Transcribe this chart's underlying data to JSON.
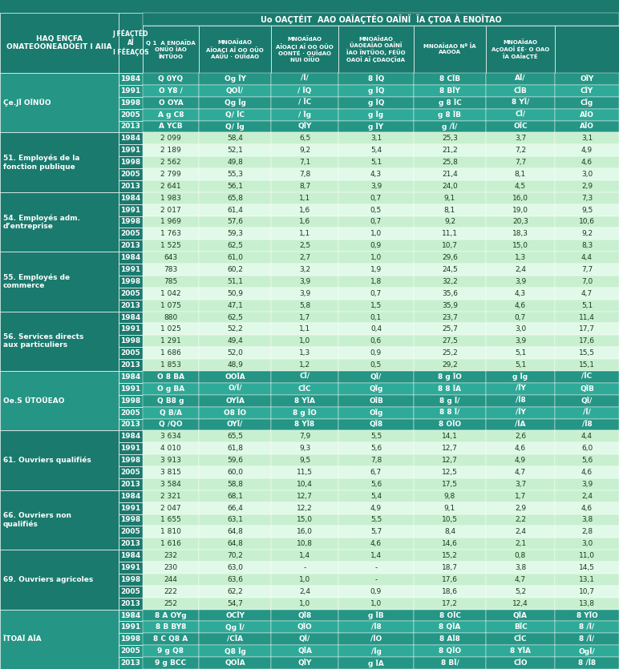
{
  "header_col_group": "HAQ ENÇFA\nONATEOONEADOEIT I AIIA",
  "header_col_year": "J FÉAÇTÉD\nAÏ\nI FÉEAÇOS",
  "header_main": "Uo OAÇTÉIT  AAO OAÏAÇTÉO OAÏNÏ  ÏA ÇTOA À ENOÏTAO",
  "header_sub1": "Q 1  A ENOAÏDA\nONÜO ÏAO\nÏNTÜOO",
  "header_sub2": "MNOAÏdAO\nAÏOAÇI AÏ OO OÜO\nAAÜU · OUÏdAO",
  "header_sub3": "MNOAÏdAO\nAÏOAÇI AÏ OO OÜO\nOONTÉ · OUÏdAO\nNUI OÏÜO",
  "header_sub4": "MNOAÏdAO\nÜAOEAÏAO OAÏNÏ\nÏAO ÏNTÜOO, FÉÜO\nOAOÏ AÏ ÇDAOÇÏdA",
  "header_sub5": "MNOAÏdAO Nº ÏA\nAAOOA",
  "header_sub6": "MNOAÏdAO\nAçOAOÏ ÉÉ· O OAO\nÏA OAÏaÇTÉ",
  "teal_dark": "#1a7a6e",
  "teal_med": "#259585",
  "teal_light": "#2faa98",
  "green_light": "#c8f0d0",
  "green_lighter": "#e0f9e8",
  "groups": [
    {
      "label": "Çe.JÏ OÏNÜO",
      "is_header": true,
      "rows": [
        [
          "1984",
          "Q 0YQ",
          "Og ÏY",
          "/Ï/",
          "8 ÏQ",
          "8 CÏB",
          "AÏ/",
          "OÏY"
        ],
        [
          "1991",
          "O Y8 /",
          "QOÏ/",
          "/ ÏQ",
          "g ÏQ",
          "8 BÏY",
          "CÏB",
          "CÏY"
        ],
        [
          "1998",
          "O OYA",
          "Qg Ïg",
          "/ ÏC",
          "g ÏQ",
          "g 8 ÏC",
          "8 YÏ/",
          "CÏg"
        ],
        [
          "2005",
          "A g C8",
          "Q/ ÏC",
          "/ Ïg",
          "g Ïg",
          "g 8 ÏB",
          "CÏ/",
          "AÏO"
        ],
        [
          "2013",
          "A YCB",
          "Q/ Ïg",
          "QÏY",
          "g ÏY",
          "g /Ï/",
          "OÏC",
          "AÏO"
        ]
      ]
    },
    {
      "label": "51. Employés de la\nfonction publique",
      "is_header": false,
      "rows": [
        [
          "1984",
          "2 099",
          "58,4",
          "6,5",
          "3,1",
          "25,3",
          "3,7",
          "3,1"
        ],
        [
          "1991",
          "2 189",
          "52,1",
          "9,2",
          "5,4",
          "21,2",
          "7,2",
          "4,9"
        ],
        [
          "1998",
          "2 562",
          "49,8",
          "7,1",
          "5,1",
          "25,8",
          "7,7",
          "4,6"
        ],
        [
          "2005",
          "2 799",
          "55,3",
          "7,8",
          "4,3",
          "21,4",
          "8,1",
          "3,0"
        ],
        [
          "2013",
          "2 641",
          "56,1",
          "8,7",
          "3,9",
          "24,0",
          "4,5",
          "2,9"
        ]
      ]
    },
    {
      "label": "54. Employés adm.\nd’entreprise",
      "is_header": false,
      "rows": [
        [
          "1984",
          "1 983",
          "65,8",
          "1,1",
          "0,7",
          "9,1",
          "16,0",
          "7,3"
        ],
        [
          "1991",
          "2 017",
          "61,4",
          "1,6",
          "0,5",
          "8,1",
          "19,0",
          "9,5"
        ],
        [
          "1998",
          "1 969",
          "57,6",
          "1,6",
          "0,7",
          "9,2",
          "20,3",
          "10,6"
        ],
        [
          "2005",
          "1 763",
          "59,3",
          "1,1",
          "1,0",
          "11,1",
          "18,3",
          "9,2"
        ],
        [
          "2013",
          "1 525",
          "62,5",
          "2,5",
          "0,9",
          "10,7",
          "15,0",
          "8,3"
        ]
      ]
    },
    {
      "label": "55. Employés de\ncommerce",
      "is_header": false,
      "rows": [
        [
          "1984",
          "643",
          "61,0",
          "2,7",
          "1,0",
          "29,6",
          "1,3",
          "4,4"
        ],
        [
          "1991",
          "783",
          "60,2",
          "3,2",
          "1,9",
          "24,5",
          "2,4",
          "7,7"
        ],
        [
          "1998",
          "785",
          "51,1",
          "3,9",
          "1,8",
          "32,2",
          "3,9",
          "7,0"
        ],
        [
          "2005",
          "1 042",
          "50,9",
          "3,9",
          "0,7",
          "35,6",
          "4,3",
          "4,7"
        ],
        [
          "2013",
          "1 075",
          "47,1",
          "5,8",
          "1,5",
          "35,9",
          "4,6",
          "5,1"
        ]
      ]
    },
    {
      "label": "56. Services directs\naux particuliers",
      "is_header": false,
      "rows": [
        [
          "1984",
          "880",
          "62,5",
          "1,7",
          "0,1",
          "23,7",
          "0,7",
          "11,4"
        ],
        [
          "1991",
          "1 025",
          "52,2",
          "1,1",
          "0,4",
          "25,7",
          "3,0",
          "17,7"
        ],
        [
          "1998",
          "1 291",
          "49,4",
          "1,0",
          "0,6",
          "27,5",
          "3,9",
          "17,6"
        ],
        [
          "2005",
          "1 686",
          "52,0",
          "1,3",
          "0,9",
          "25,2",
          "5,1",
          "15,5"
        ],
        [
          "2013",
          "1 853",
          "48,9",
          "1,2",
          "0,5",
          "29,2",
          "5,1",
          "15,1"
        ]
      ]
    },
    {
      "label": "Oe.S ÜTOÜEAO",
      "is_header": true,
      "rows": [
        [
          "1984",
          "O 8 BA",
          "OOÏA",
          "CÏ/",
          "QÏ/",
          "8 g ÏO",
          "g Ïg",
          "/ÏC"
        ],
        [
          "1991",
          "O g BA",
          "O/Ï/",
          "CÏC",
          "QÏg",
          "8 8 ÏA",
          "/ÏY",
          "QÏB"
        ],
        [
          "1998",
          "Q B8 g",
          "OYÏA",
          "8 YÏA",
          "OÏB",
          "8 g Ï/",
          "/Ï8",
          "QÏ/"
        ],
        [
          "2005",
          "Q B/A",
          "O8 ÏO",
          "8 g ÏO",
          "OÏg",
          "8 8 Ï/",
          "/ÏY",
          "/Ï/"
        ],
        [
          "2013",
          "Q /QO",
          "OYÏ/",
          "8 YÏ8",
          "QÏ8",
          "8 OÏO",
          "/ÏA",
          "/Ï8"
        ]
      ]
    },
    {
      "label": "61. Ouvriers qualifiés",
      "is_header": false,
      "rows": [
        [
          "1984",
          "3 634",
          "65,5",
          "7,9",
          "5,5",
          "14,1",
          "2,6",
          "4,4"
        ],
        [
          "1991",
          "4 010",
          "61,8",
          "9,3",
          "5,6",
          "12,7",
          "4,6",
          "6,0"
        ],
        [
          "1998",
          "3 913",
          "59,6",
          "9,5",
          "7,8",
          "12,7",
          "4,9",
          "5,6"
        ],
        [
          "2005",
          "3 815",
          "60,0",
          "11,5",
          "6,7",
          "12,5",
          "4,7",
          "4,6"
        ],
        [
          "2013",
          "3 584",
          "58,8",
          "10,4",
          "5,6",
          "17,5",
          "3,7",
          "3,9"
        ]
      ]
    },
    {
      "label": "66. Ouvriers non\nqualifiés",
      "is_header": false,
      "rows": [
        [
          "1984",
          "2 321",
          "68,1",
          "12,7",
          "5,4",
          "9,8",
          "1,7",
          "2,4"
        ],
        [
          "1991",
          "2 047",
          "66,4",
          "12,2",
          "4,9",
          "9,1",
          "2,9",
          "4,6"
        ],
        [
          "1998",
          "1 655",
          "63,1",
          "15,0",
          "5,5",
          "10,5",
          "2,2",
          "3,8"
        ],
        [
          "2005",
          "1 810",
          "64,8",
          "16,0",
          "5,7",
          "8,4",
          "2,4",
          "2,8"
        ],
        [
          "2013",
          "1 616",
          "64,8",
          "10,8",
          "4,6",
          "14,6",
          "2,1",
          "3,0"
        ]
      ]
    },
    {
      "label": "69. Ouvriers agricoles",
      "is_header": false,
      "rows": [
        [
          "1984",
          "232",
          "70,2",
          "1,4",
          "1,4",
          "15,2",
          "0,8",
          "11,0"
        ],
        [
          "1991",
          "230",
          "63,0",
          "-",
          "-",
          "18,7",
          "3,8",
          "14,5"
        ],
        [
          "1998",
          "244",
          "63,6",
          "1,0",
          "-",
          "17,6",
          "4,7",
          "13,1"
        ],
        [
          "2005",
          "222",
          "62,2",
          "2,4",
          "0,9",
          "18,6",
          "5,2",
          "10,7"
        ],
        [
          "2013",
          "252",
          "54,7",
          "1,0",
          "1,0",
          "17,2",
          "12,4",
          "13,8"
        ]
      ]
    },
    {
      "label": "ÏTOAÏ AÏA",
      "is_header": true,
      "rows": [
        [
          "1984",
          "8 A OYg",
          "OCÏY",
          "QÏ8",
          "g ÏB",
          "8 OÏC",
          "QÏA",
          "8 YÏO"
        ],
        [
          "1991",
          "8 B BY8",
          "Qg Ï/",
          "QÏO",
          "/Ï8",
          "8 QÏA",
          "BÏC",
          "8 /Ï/"
        ],
        [
          "1998",
          "8 C Q8 A",
          "/CÏA",
          "QÏ/",
          "/ÏO",
          "8 AÏ8",
          "CÏC",
          "8 /Ï/"
        ],
        [
          "2005",
          "9 g Q8",
          "Q8 Ïg",
          "QÏA",
          "/Ïg",
          "8 QÏO",
          "8 YÏA",
          "OgÏ/"
        ],
        [
          "2013",
          "9 g BCC",
          "QOÏA",
          "QÏY",
          "g ÏA",
          "8 BÏ/",
          "CÏO",
          "8 /Ï8"
        ]
      ]
    }
  ]
}
